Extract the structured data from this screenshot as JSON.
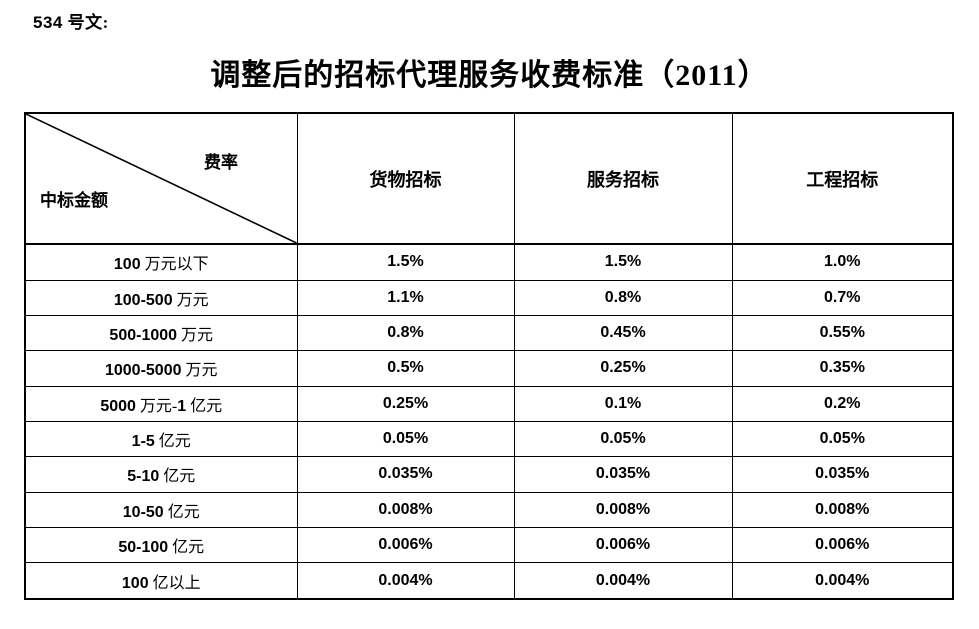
{
  "doc": {
    "label": "534 号文:",
    "title": "调整后的招标代理服务收费标准（2011）"
  },
  "table": {
    "corner": {
      "top_right": "费率",
      "bottom_left": "中标金额"
    },
    "columns": [
      "货物招标",
      "服务招标",
      "工程招标"
    ],
    "rows": [
      {
        "label": "100 万元以下",
        "values": [
          "1.5%",
          "1.5%",
          "1.0%"
        ]
      },
      {
        "label": "100-500 万元",
        "values": [
          "1.1%",
          "0.8%",
          "0.7%"
        ]
      },
      {
        "label": "500-1000 万元",
        "values": [
          "0.8%",
          "0.45%",
          "0.55%"
        ]
      },
      {
        "label": "1000-5000 万元",
        "values": [
          "0.5%",
          "0.25%",
          "0.35%"
        ]
      },
      {
        "label": "5000 万元-1 亿元",
        "values": [
          "0.25%",
          "0.1%",
          "0.2%"
        ]
      },
      {
        "label": "1-5 亿元",
        "values": [
          "0.05%",
          "0.05%",
          "0.05%"
        ]
      },
      {
        "label": "5-10 亿元",
        "values": [
          "0.035%",
          "0.035%",
          "0.035%"
        ]
      },
      {
        "label": "10-50 亿元",
        "values": [
          "0.008%",
          "0.008%",
          "0.008%"
        ]
      },
      {
        "label": "50-100 亿元",
        "values": [
          "0.006%",
          "0.006%",
          "0.006%"
        ]
      },
      {
        "label": "100 亿以上",
        "values": [
          "0.004%",
          "0.004%",
          "0.004%"
        ]
      }
    ]
  },
  "colors": {
    "text": "#000000",
    "border": "#000000",
    "background": "#ffffff"
  }
}
